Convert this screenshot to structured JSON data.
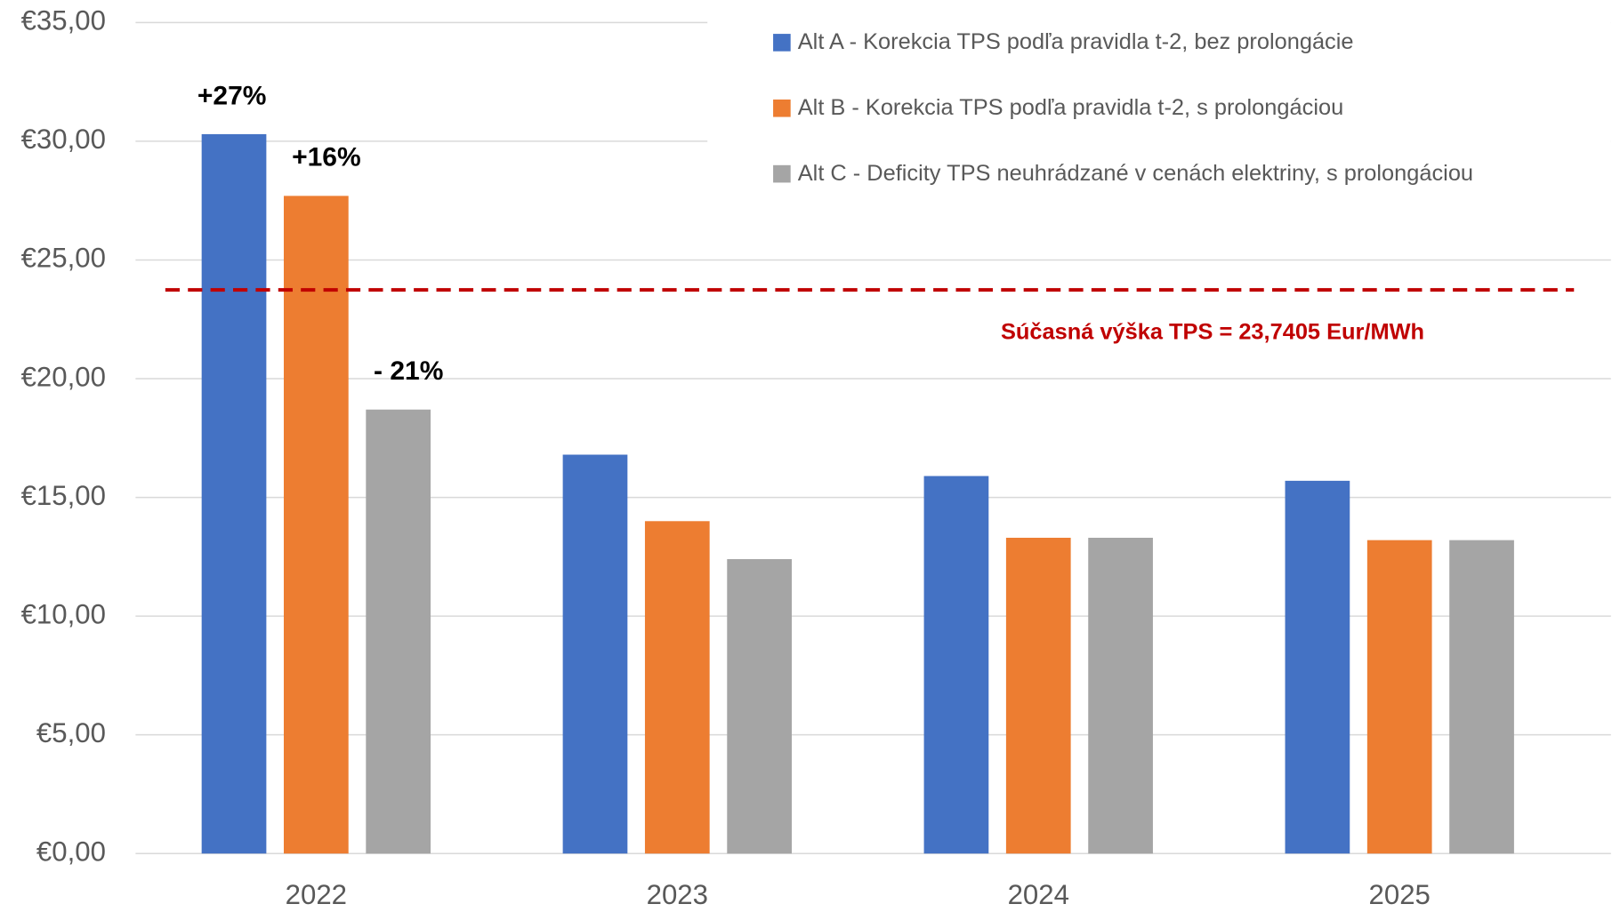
{
  "chart_data": {
    "type": "bar",
    "categories": [
      "2022",
      "2023",
      "2024",
      "2025"
    ],
    "series": [
      {
        "name": "Alt A - Korekcia TPS podľa pravidla t-2, bez prolongácie",
        "color": "#4472c4",
        "values": [
          30.3,
          16.8,
          15.9,
          15.7
        ]
      },
      {
        "name": "Alt B - Korekcia TPS podľa pravidla t-2, s prolongáciou",
        "color": "#ed7d31",
        "values": [
          27.7,
          14.0,
          13.3,
          13.2
        ]
      },
      {
        "name": "Alt C - Deficity TPS neuhrádzané v cenách elektriny, s prolongáciou",
        "color": "#a5a5a5",
        "values": [
          18.7,
          12.4,
          13.3,
          13.2
        ]
      }
    ],
    "ylim": [
      0,
      35
    ],
    "yticks": [
      {
        "value": 0,
        "label": "€0,00"
      },
      {
        "value": 5,
        "label": "€5,00"
      },
      {
        "value": 10,
        "label": "€10,00"
      },
      {
        "value": 15,
        "label": "€15,00"
      },
      {
        "value": 20,
        "label": "€20,00"
      },
      {
        "value": 25,
        "label": "€25,00"
      },
      {
        "value": 30,
        "label": "€30,00"
      },
      {
        "value": 35,
        "label": "€35,00"
      }
    ],
    "grid": true,
    "legend": "upper right",
    "reference_line": {
      "value": 23.7405,
      "label": "Súčasná výška TPS = 23,7405 Eur/MWh",
      "color": "#c00000"
    },
    "annotations": [
      "+27%",
      "+16%",
      "- 21%"
    ]
  }
}
